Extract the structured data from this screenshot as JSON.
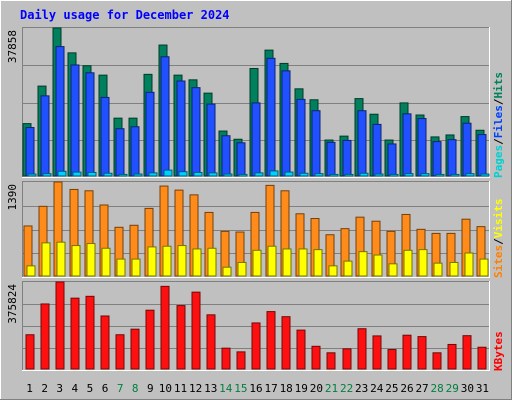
{
  "chart_data": {
    "type": "bar",
    "title": "Daily usage for December 2024",
    "categories": [
      "1",
      "2",
      "3",
      "4",
      "5",
      "6",
      "7",
      "8",
      "9",
      "10",
      "11",
      "12",
      "13",
      "14",
      "15",
      "16",
      "17",
      "18",
      "19",
      "20",
      "21",
      "22",
      "23",
      "24",
      "25",
      "26",
      "27",
      "28",
      "29",
      "30",
      "31"
    ],
    "weekend_days": [
      "7",
      "8",
      "14",
      "15",
      "21",
      "22",
      "28",
      "29"
    ],
    "panels": [
      {
        "id": "pages-files-hits",
        "max_label": "37858",
        "ylim": [
          0,
          37858
        ],
        "legend": [
          {
            "text": "Pages",
            "color": "#00d0d0"
          },
          {
            "text": "/",
            "color": "#000000"
          },
          {
            "text": "Files",
            "color": "#0040ff"
          },
          {
            "text": "/",
            "color": "#000000"
          },
          {
            "text": "Hits",
            "color": "#00805c"
          }
        ],
        "series": [
          {
            "name": "Hits",
            "color": "#00805c",
            "values": [
              13400,
              23000,
              37858,
              31500,
              28200,
              25800,
              14800,
              14800,
              26000,
              33500,
              25800,
              24600,
              21200,
              11500,
              9400,
              27500,
              32200,
              28800,
              22300,
              19500,
              9200,
              10200,
              19800,
              15800,
              9200,
              18700,
              15600,
              10000,
              10500,
              15200,
              11700
            ]
          },
          {
            "name": "Files",
            "color": "#2050ff",
            "values": [
              12400,
              20500,
              33100,
              28400,
              26400,
              20100,
              12100,
              12600,
              21400,
              30500,
              24300,
              22600,
              18400,
              10300,
              8500,
              18700,
              30100,
              26900,
              19600,
              16700,
              8600,
              9100,
              16700,
              13200,
              8200,
              15900,
              14700,
              8800,
              9300,
              13500,
              10600
            ]
          },
          {
            "name": "Pages",
            "color": "#00d0ff",
            "values": [
              500,
              600,
              1200,
              1000,
              900,
              700,
              400,
              500,
              800,
              1500,
              1100,
              900,
              800,
              500,
              400,
              800,
              1300,
              1000,
              700,
              600,
              400,
              400,
              700,
              500,
              400,
              600,
              600,
              400,
              400,
              600,
              500
            ]
          }
        ]
      },
      {
        "id": "visits-sites",
        "max_label": "1390",
        "ylim": [
          0,
          1390
        ],
        "legend": [
          {
            "text": "Sites",
            "color": "#ff8000"
          },
          {
            "text": "/",
            "color": "#000000"
          },
          {
            "text": "Visits",
            "color": "#ffff00"
          }
        ],
        "series": [
          {
            "name": "Visits",
            "color": "#ff8c1a",
            "values": [
              740,
              1030,
              1390,
              1280,
              1260,
              1050,
              720,
              750,
              1000,
              1330,
              1270,
              1200,
              940,
              660,
              650,
              940,
              1340,
              1260,
              920,
              850,
              610,
              700,
              870,
              810,
              660,
              910,
              690,
              630,
              630,
              840,
              730
            ]
          },
          {
            "name": "Sites",
            "color": "#ffff00",
            "values": [
              150,
              490,
              500,
              450,
              480,
              410,
              250,
              250,
              430,
              440,
              450,
              400,
              410,
              130,
              200,
              380,
              440,
              400,
              400,
              390,
              150,
              220,
              360,
              310,
              180,
              380,
              390,
              190,
              200,
              340,
              250
            ]
          }
        ]
      },
      {
        "id": "kbytes",
        "max_label": "375824",
        "ylim": [
          0,
          375824
        ],
        "legend": [
          {
            "text": "KBytes",
            "color": "#ff0000"
          }
        ],
        "series": [
          {
            "name": "KBytes",
            "color": "#ff1010",
            "values": [
              148000,
              281000,
              375824,
              306000,
              314000,
              229000,
              148000,
              172000,
              254000,
              357000,
              274000,
              332000,
              234000,
              90000,
              74000,
              199000,
              248000,
              226000,
              168000,
              98000,
              70000,
              87000,
              174000,
              143000,
              84000,
              146000,
              140000,
              70000,
              106000,
              144000,
              94000
            ]
          }
        ]
      }
    ]
  }
}
